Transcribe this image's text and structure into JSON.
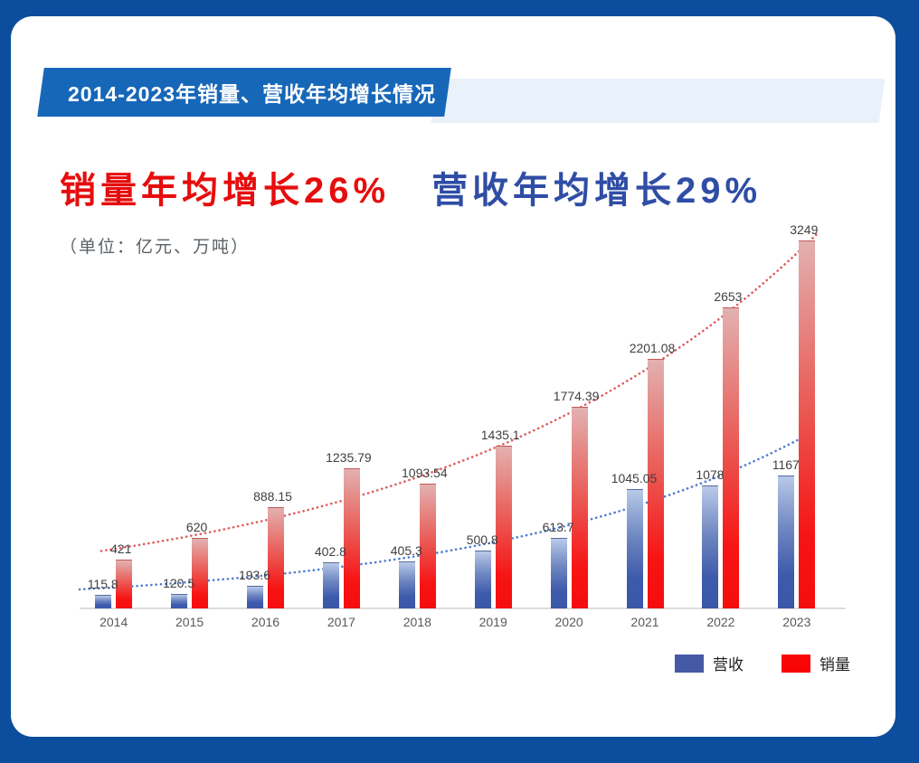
{
  "frame": {
    "border_color": "#0d4d9d",
    "panel_color": "#ffffff"
  },
  "header": {
    "banner_label": "2014-2023年销量、营收年均增长情况",
    "banner_color": "#1767b9",
    "banner_shadow_color": "#e9f1fb",
    "text_color": "#ffffff"
  },
  "headline": {
    "sales_text": "销量年均增长26%",
    "revenue_text": "营收年均增长29%",
    "sales_color": "#e60d0d",
    "revenue_color": "#2f4da5"
  },
  "unit_note": "（单位：亿元、万吨）",
  "legend": {
    "revenue_label": "营收",
    "sales_label": "销量",
    "revenue_color": "#4659a4",
    "sales_color": "#f80505"
  },
  "chart_data": {
    "type": "bar",
    "categories": [
      "2014",
      "2015",
      "2016",
      "2017",
      "2018",
      "2019",
      "2020",
      "2021",
      "2022",
      "2023"
    ],
    "series": [
      {
        "name": "营收",
        "color": "#3a57a8",
        "values": [
          115.8,
          120.5,
          193.6,
          402.8,
          405.3,
          500.8,
          613.7,
          1045.05,
          1078,
          1167
        ],
        "labels": [
          "115.8",
          "120.5",
          "193.6",
          "402.8",
          "405.3",
          "500.8",
          "613.7",
          "1045.05",
          "1078",
          "1167"
        ]
      },
      {
        "name": "销量",
        "color": "#f50d0d",
        "values": [
          421,
          620,
          888.15,
          1235.79,
          1093.54,
          1435.1,
          1774.39,
          2201.08,
          2653,
          3249
        ],
        "labels": [
          "421",
          "620",
          "888.15",
          "1235.79",
          "1093.54",
          "1435.1",
          "1774.39",
          "2201.08",
          "2653",
          "3249"
        ]
      }
    ],
    "title": "2014-2023年销量、营收年均增长情况",
    "xlabel": "",
    "ylabel": "",
    "ylim": [
      0,
      3249
    ],
    "grid": false,
    "axes_visible": "x-only",
    "legend_position": "bottom-right",
    "trendlines": [
      {
        "series": "销量",
        "style": "dotted",
        "color": "#e05a5a"
      },
      {
        "series": "营收",
        "style": "dotted",
        "color": "#4f7ad0"
      }
    ]
  }
}
